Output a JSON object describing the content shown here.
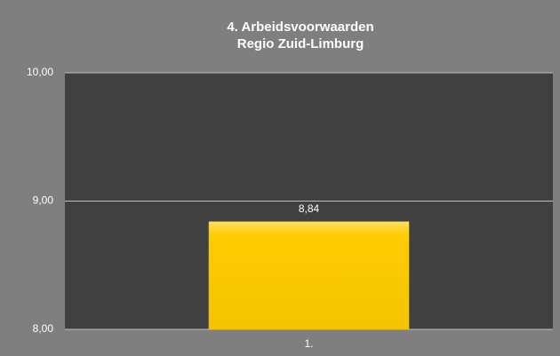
{
  "chart_data": {
    "type": "bar",
    "title": [
      "4. Arbeidsvoorwaarden",
      "Regio Zuid-Limburg"
    ],
    "categories": [
      "1."
    ],
    "values": [
      8.84
    ],
    "value_labels": [
      "8,84"
    ],
    "color": "#ffcc00",
    "ylim": [
      8,
      10
    ],
    "yticks": [
      {
        "value": 8,
        "label": "8,00"
      },
      {
        "value": 9,
        "label": "9,00"
      },
      {
        "value": 10,
        "label": "10,00"
      }
    ],
    "grid": true
  }
}
